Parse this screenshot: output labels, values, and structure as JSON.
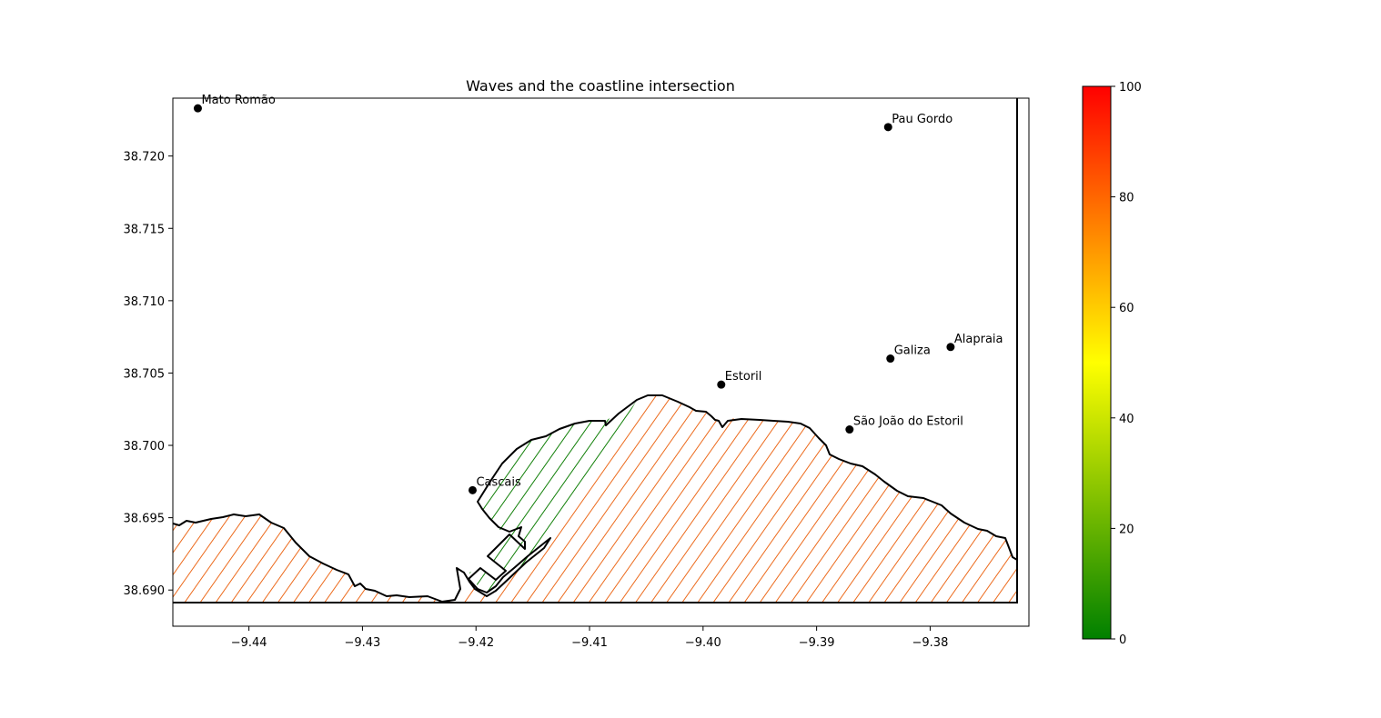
{
  "title": "Waves and the coastline intersection",
  "axes": {
    "xticks": [
      -9.44,
      -9.43,
      -9.42,
      -9.41,
      -9.4,
      -9.39,
      -9.38
    ],
    "xtick_labels": [
      "−9.44",
      "−9.43",
      "−9.42",
      "−9.41",
      "−9.40",
      "−9.39",
      "−9.38"
    ],
    "yticks": [
      38.69,
      38.695,
      38.7,
      38.705,
      38.71,
      38.715,
      38.72
    ],
    "ytick_labels": [
      "38.690",
      "38.695",
      "38.700",
      "38.705",
      "38.710",
      "38.715",
      "38.720"
    ],
    "xlim": [
      -9.4467,
      -9.3713
    ],
    "ylim": [
      38.6875,
      38.724
    ]
  },
  "places": [
    {
      "name": "Mato Romão",
      "lon": -9.4445,
      "lat": 38.7233
    },
    {
      "name": "Pau Gordo",
      "lon": -9.3837,
      "lat": 38.722
    },
    {
      "name": "Alapraia",
      "lon": -9.3782,
      "lat": 38.7068
    },
    {
      "name": "Galiza",
      "lon": -9.3835,
      "lat": 38.706
    },
    {
      "name": "Estoril",
      "lon": -9.3984,
      "lat": 38.7042
    },
    {
      "name": "São João do Estoril",
      "lon": -9.3871,
      "lat": 38.7011
    },
    {
      "name": "Cascais",
      "lon": -9.4203,
      "lat": 38.6969
    }
  ],
  "colorbar": {
    "min": 0,
    "max": 100,
    "ticks": [
      "0",
      "20",
      "40",
      "60",
      "80",
      "100"
    ],
    "colors": [
      "#008000",
      "#ffff00",
      "#ff0000"
    ]
  },
  "hatch_colors": {
    "green_zone": "#107f07",
    "orange_zone": "#ec6a1c"
  }
}
